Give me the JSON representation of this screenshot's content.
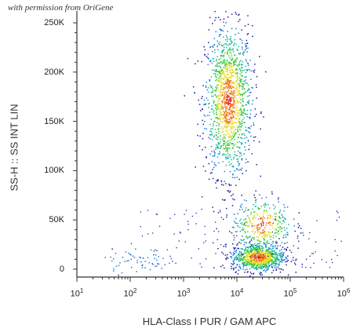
{
  "watermark": "with permission from OriGene",
  "chart_data": {
    "type": "scatter",
    "xlabel": "HLA-Class I PUR / GAM APC",
    "ylabel": "SS-H :: SS INT LIN",
    "x_scale": "log",
    "xlim": [
      10,
      1000000
    ],
    "ylim": [
      -8000,
      262000
    ],
    "x_ticks": [
      {
        "value": 10,
        "base": "10",
        "exp": "1"
      },
      {
        "value": 100,
        "base": "10",
        "exp": "2"
      },
      {
        "value": 1000,
        "base": "10",
        "exp": "3"
      },
      {
        "value": 10000,
        "base": "10",
        "exp": "4"
      },
      {
        "value": 100000,
        "base": "10",
        "exp": "5"
      },
      {
        "value": 1000000,
        "base": "10",
        "exp": "6"
      }
    ],
    "y_ticks": [
      {
        "value": 0,
        "label": "0"
      },
      {
        "value": 50000,
        "label": "50K"
      },
      {
        "value": 100000,
        "label": "100K"
      },
      {
        "value": 150000,
        "label": "150K"
      },
      {
        "value": 200000,
        "label": "200K"
      },
      {
        "value": 250000,
        "label": "250K"
      }
    ],
    "density_colormap": [
      "#1e1ea0",
      "#1e78dc",
      "#14b4a0",
      "#3cc83c",
      "#e6dc1e",
      "#f07814",
      "#dc1e1e"
    ],
    "populations": [
      {
        "x_center": 7000,
        "y_center": 170000,
        "x_spread_decades": 0.22,
        "y_spread": 38000,
        "points": 1400
      },
      {
        "x_center": 25000,
        "y_center": 12000,
        "x_spread_decades": 0.25,
        "y_spread": 7000,
        "points": 900
      },
      {
        "x_center": 30000,
        "y_center": 45000,
        "x_spread_decades": 0.28,
        "y_spread": 14000,
        "points": 350
      },
      {
        "x_center": 150,
        "y_center": 8000,
        "x_spread_decades": 0.35,
        "y_spread": 6000,
        "points": 60
      }
    ]
  }
}
